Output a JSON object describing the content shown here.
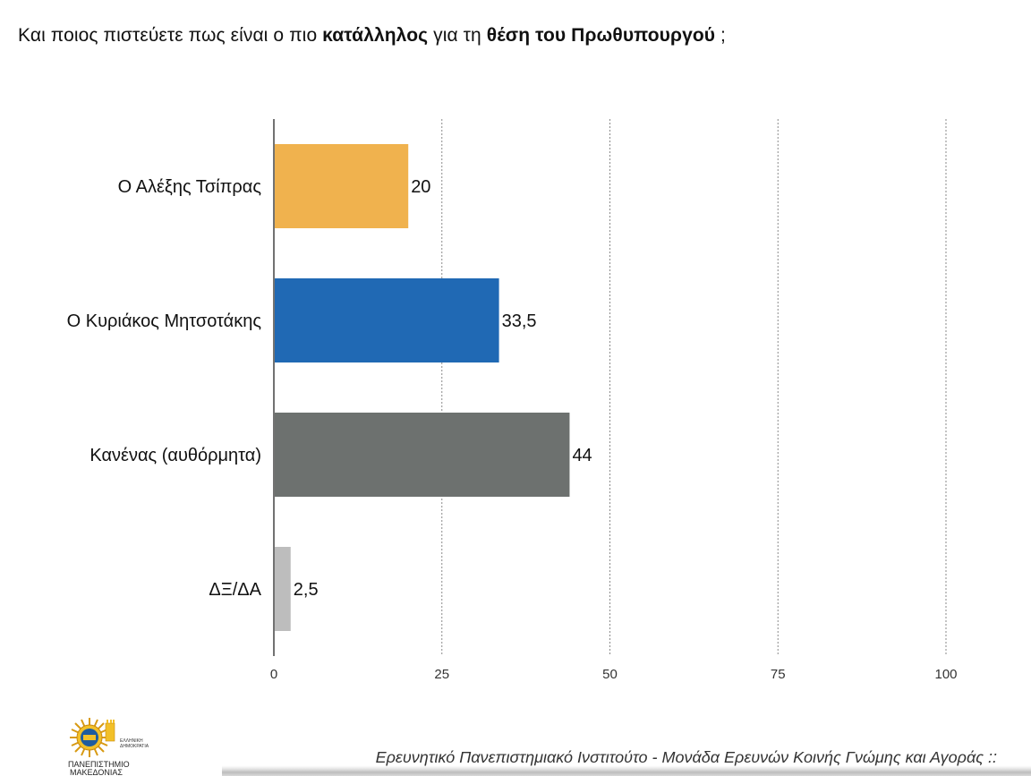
{
  "title": {
    "part1": "Και ποιος πιστεύετε πως είναι ο πιο ",
    "bold1": "κατάλληλος",
    "part2": " για τη ",
    "bold2": "θέση του Πρωθυπουργού",
    "part3": " ;"
  },
  "chart_data": {
    "type": "bar",
    "orientation": "horizontal",
    "categories": [
      "Ο Αλέξης Τσίπρας",
      "Ο Κυριάκος Μητσοτάκης",
      "Κανένας (αυθόρμητα)",
      "ΔΞ/ΔΑ"
    ],
    "values": [
      20,
      33.5,
      44,
      2.5
    ],
    "value_labels": [
      "20",
      "33,5",
      "44",
      "2,5"
    ],
    "colors": [
      "#F0B24E",
      "#2069B4",
      "#6D716F",
      "#BDBDBD"
    ],
    "xlim": [
      0,
      100
    ],
    "xticks": [
      0,
      25,
      50,
      75,
      100
    ],
    "xtick_labels": [
      "0",
      "25",
      "50",
      "75",
      "100"
    ],
    "grid": "vertical dashed"
  },
  "footer": {
    "institute": "Ερευνητικό Πανεπιστημιακό Ινστιτούτο - Μονάδα Ερευνών Κοινής Γνώμης και Αγοράς ::",
    "logo_line1": "ΕΛΛΗΝΙΚΗ",
    "logo_line2": "ΔΗΜΟΚΡΑΤΙΑ",
    "logo_line3": "ΠΑΝΕΠΙΣΤΗΜΙΟ",
    "logo_line4": "ΜΑΚΕΔΟΝΙΑΣ"
  }
}
